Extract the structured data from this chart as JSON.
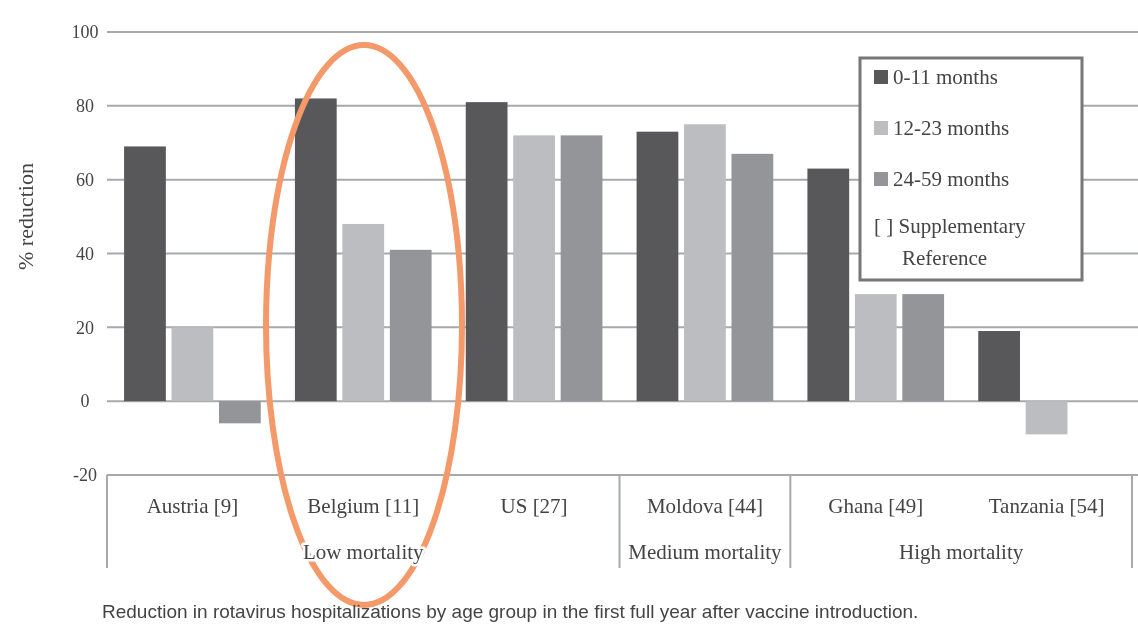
{
  "chart_data": {
    "type": "bar",
    "ylabel": "% reduction",
    "categories": [
      "Austria [9]",
      "Belgium [11]",
      "US [27]",
      "Moldova [44]",
      "Ghana [49]",
      "Tanzania [54]"
    ],
    "series": [
      {
        "name": "0-11 months",
        "color": "#58585a",
        "values": [
          69,
          82,
          81,
          73,
          63,
          19
        ]
      },
      {
        "name": "12-23 months",
        "color": "#bcbdc0",
        "values": [
          20,
          48,
          72,
          75,
          29,
          -9
        ]
      },
      {
        "name": "24-59 months",
        "color": "#939598",
        "values": [
          -6,
          41,
          72,
          67,
          29,
          null
        ]
      }
    ],
    "ylim": [
      -20,
      100
    ],
    "yticks": [
      -20,
      0,
      20,
      40,
      60,
      80,
      100
    ],
    "grid": "y",
    "legend": "top right",
    "annotations": [
      "Low mortality",
      "Medium mortality",
      "High mortality",
      "[ ] Supplementary Reference",
      "Reduction in rotavirus hospitalizations by age group in the first full year after vaccine introduction."
    ]
  }
}
